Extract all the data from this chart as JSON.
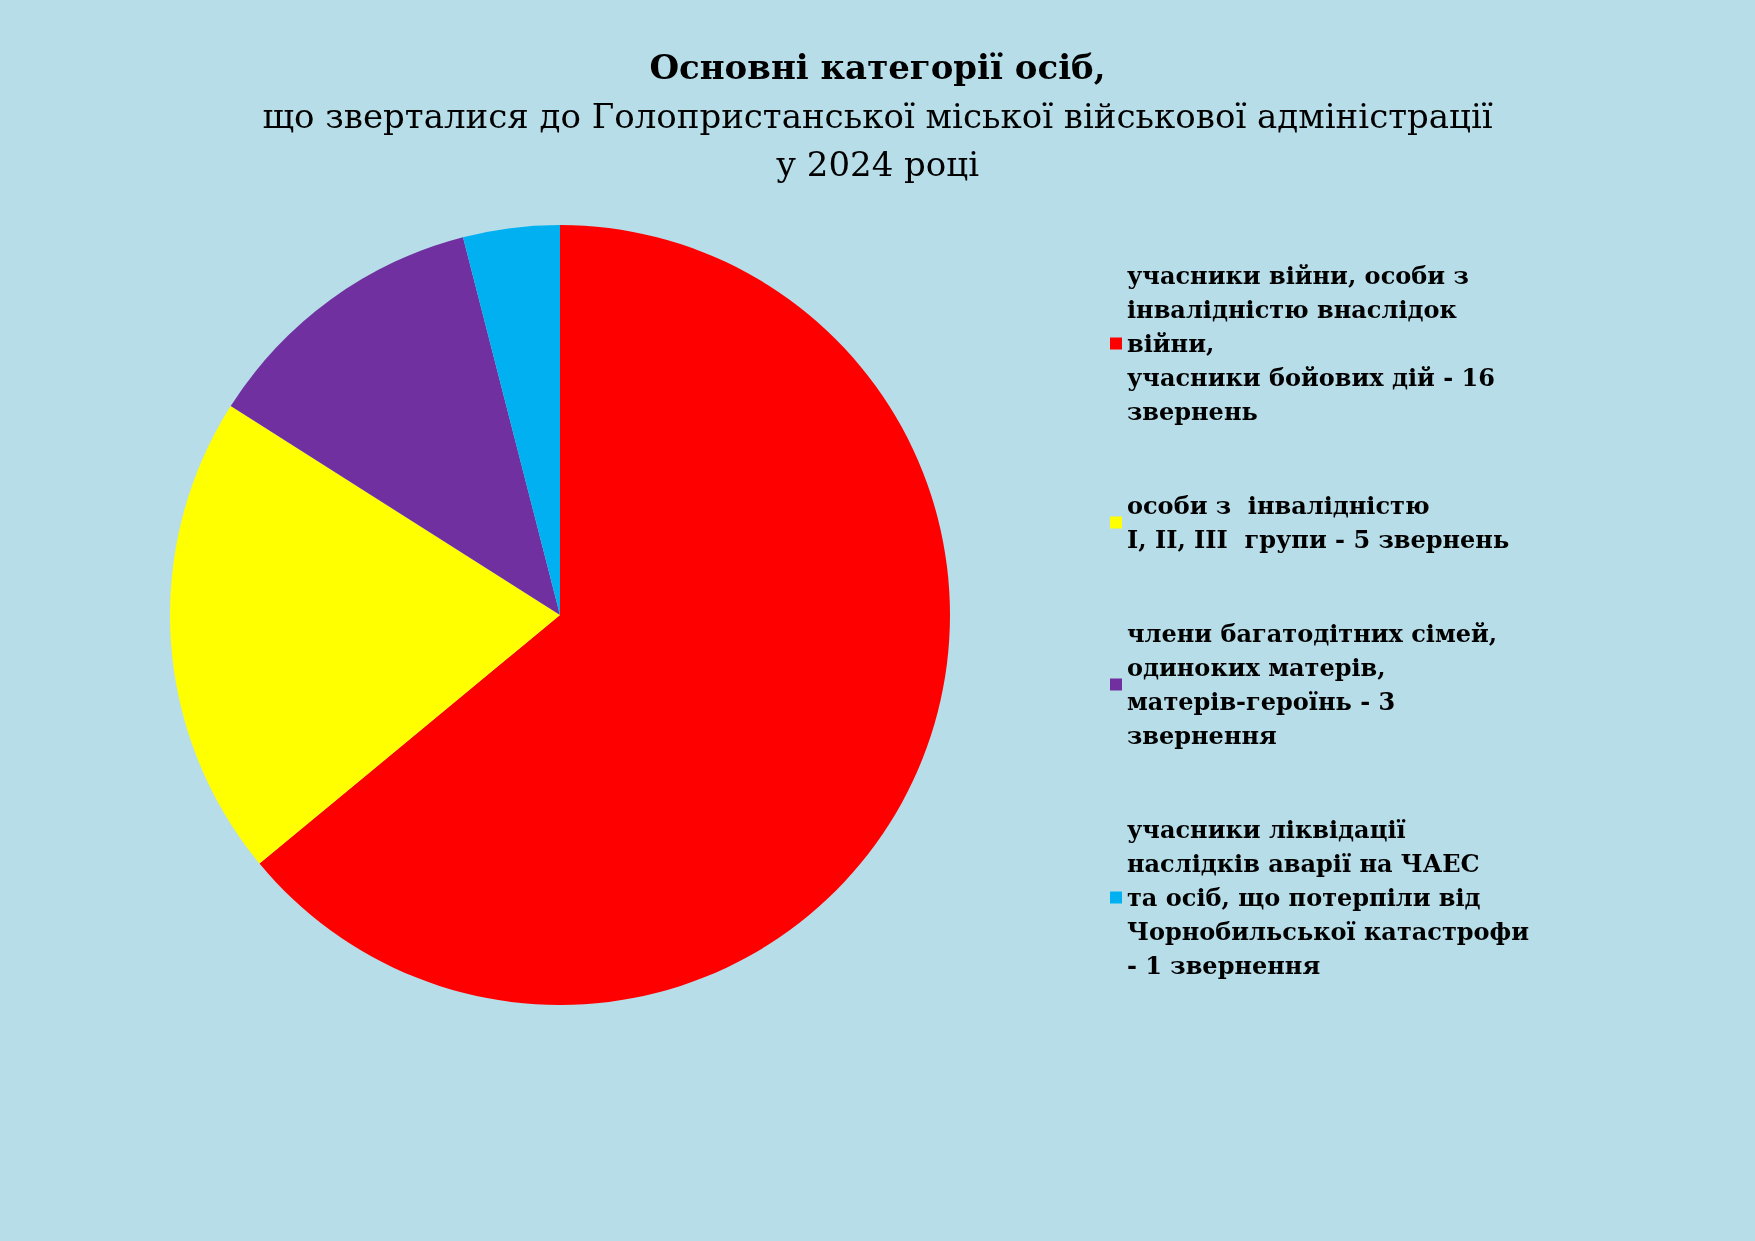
{
  "chart_data": {
    "type": "pie",
    "title": "Основні категорії осіб,",
    "subtitle": "що зверталися до Голопристанської міської військової адміністрації\nу 2024 році",
    "categories": [
      "учасники війни, особи з інвалідністю внаслідок війни,\nучасники бойових дій - 16 звернень",
      "особи з  інвалідністю\nI, II, III  групи - 5 звернень",
      "члени багатодітних сімей, одиноких матерів, матерів-героїнь - 3 звернення",
      "учасники ліквідації наслідків аварії на ЧАЕС\nта осіб, що потерпіли від Чорнобильської катастрофи\n- 1 звернення"
    ],
    "values": [
      64,
      20,
      12,
      4
    ],
    "colors": [
      "#ff0000",
      "#ffff00",
      "#7030a0",
      "#00b0f0"
    ],
    "legend": "right"
  }
}
